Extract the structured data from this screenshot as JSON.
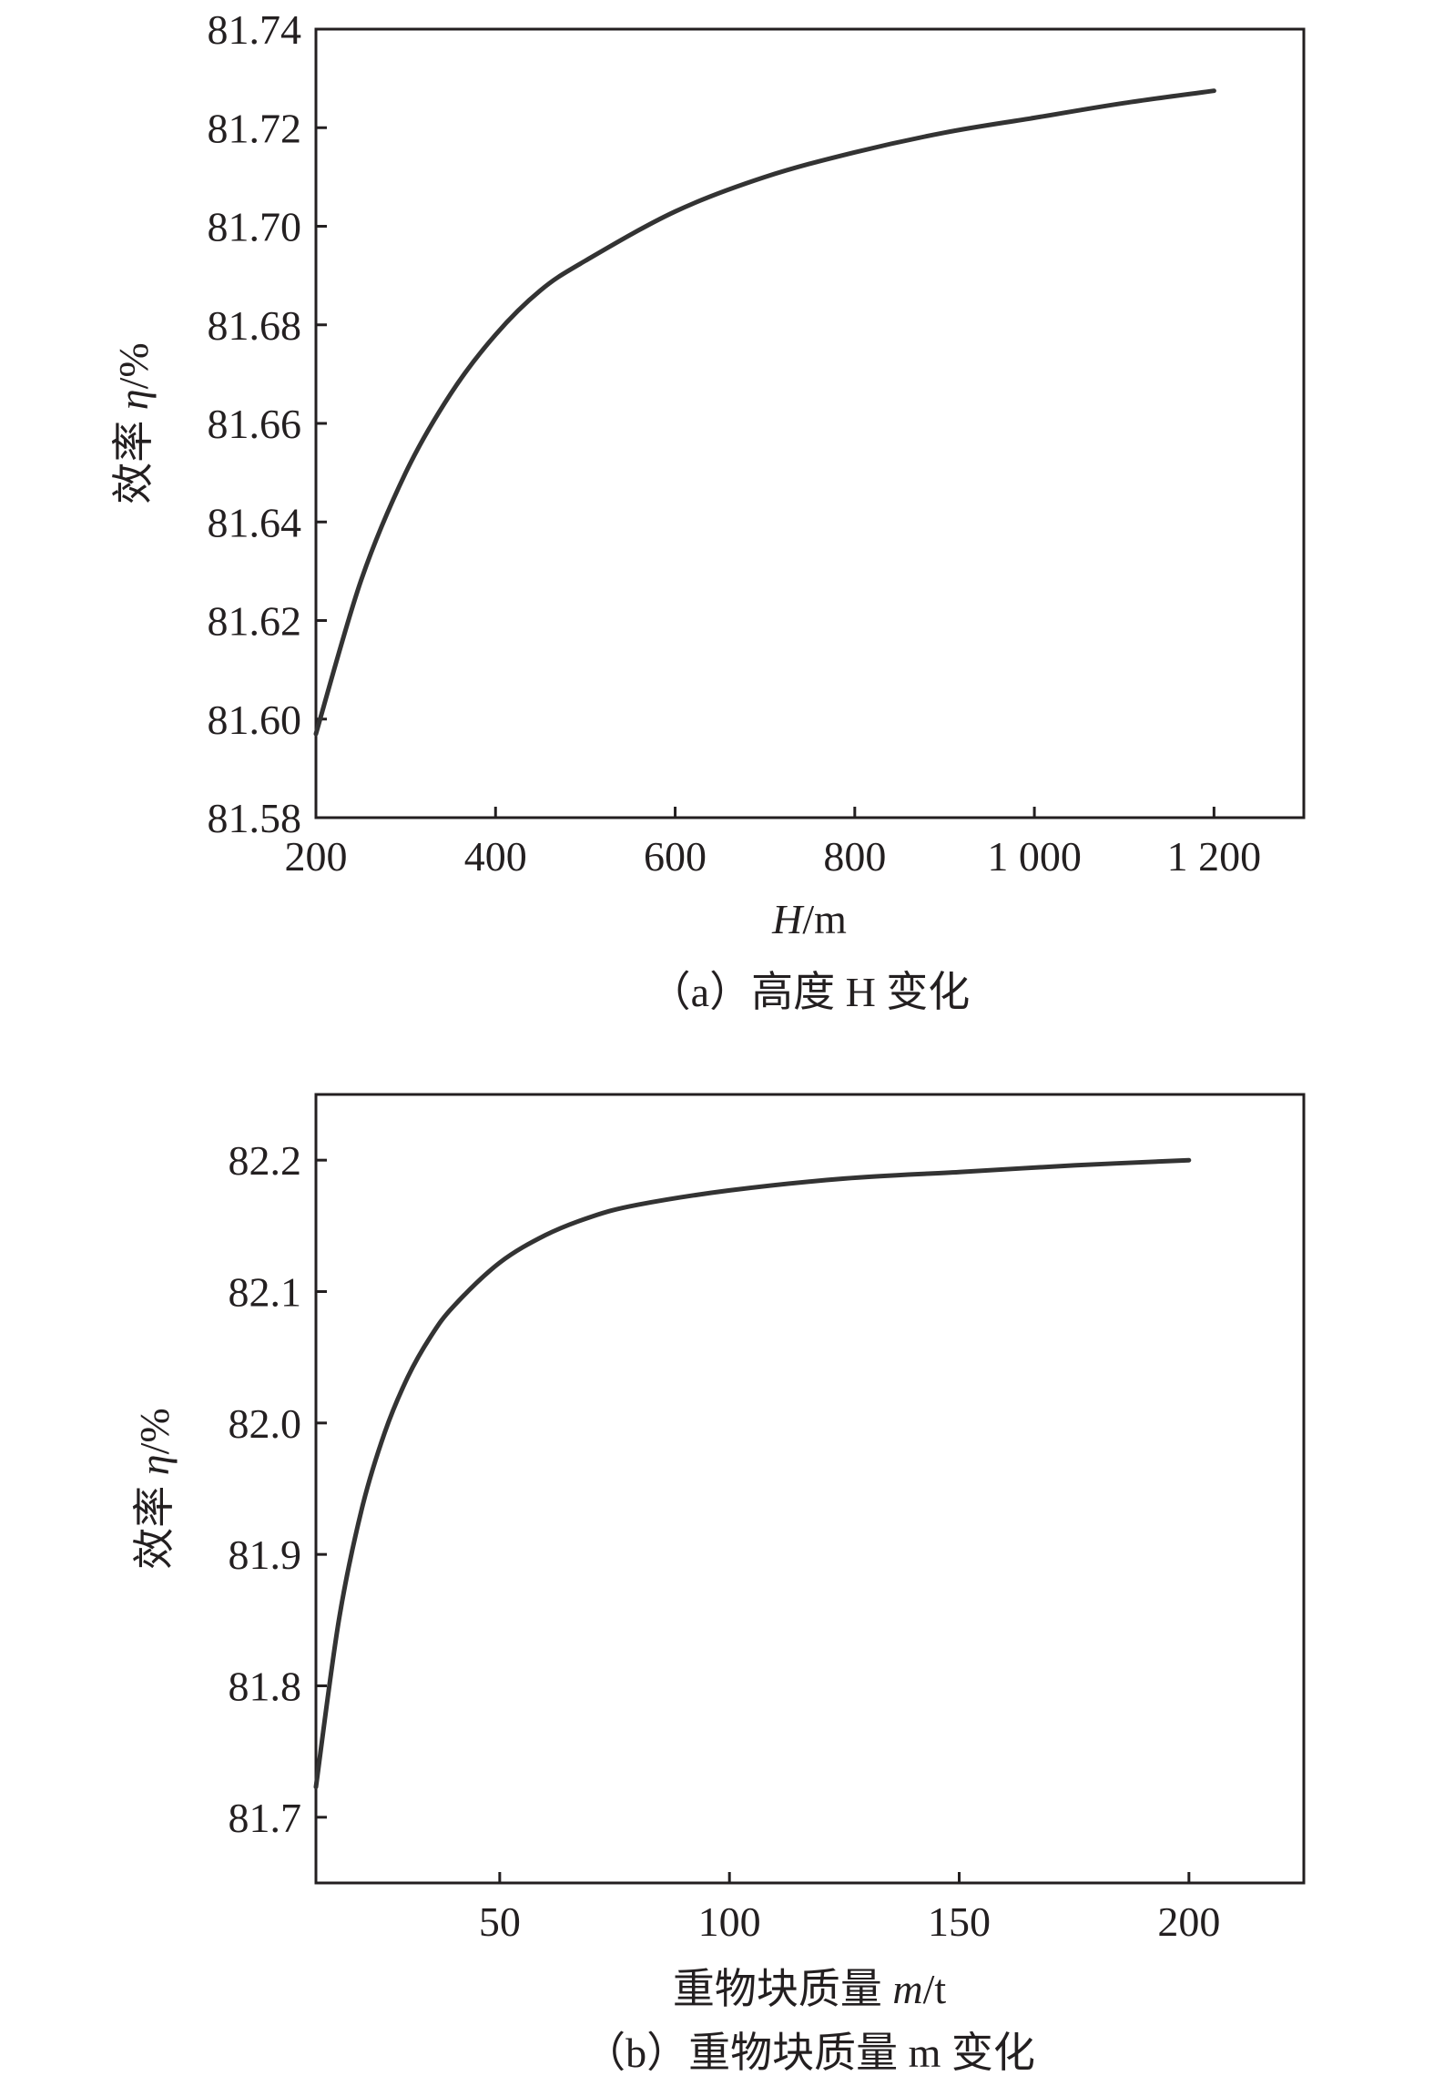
{
  "chart_data": [
    {
      "type": "line",
      "caption": "（a）高度 H 变化",
      "xlabel": {
        "var": "H",
        "unit": "/m"
      },
      "ylabel": {
        "text": "效率 ",
        "var": "η",
        "unit": "/%"
      },
      "xlim": [
        200,
        1300
      ],
      "ylim": [
        81.58,
        81.74
      ],
      "xticks": [
        200,
        400,
        600,
        800,
        1000,
        1200
      ],
      "xtick_labels": [
        "200",
        "400",
        "600",
        "800",
        "1 000",
        "1 200"
      ],
      "yticks": [
        81.58,
        81.6,
        81.62,
        81.64,
        81.66,
        81.68,
        81.7,
        81.72,
        81.74
      ],
      "ytick_labels": [
        "81.58",
        "81.60",
        "81.62",
        "81.64",
        "81.66",
        "81.68",
        "81.70",
        "81.72",
        "81.74"
      ],
      "grid": false,
      "series": [
        {
          "x": [
            200,
            250,
            300,
            350,
            400,
            450,
            500,
            600,
            700,
            800,
            900,
            1000,
            1100,
            1200
          ],
          "y": [
            81.597,
            81.628,
            81.65,
            81.666,
            81.678,
            81.687,
            81.693,
            81.703,
            81.71,
            81.715,
            81.719,
            81.722,
            81.725,
            81.7275
          ]
        }
      ]
    },
    {
      "type": "line",
      "caption": "（b）重物块质量 m 变化",
      "xlabel": {
        "text": "重物块质量 ",
        "var": "m",
        "unit": "/t"
      },
      "ylabel": {
        "text": "效率 ",
        "var": "η",
        "unit": "/%"
      },
      "xlim": [
        10,
        225
      ],
      "ylim": [
        81.65,
        82.25
      ],
      "xticks": [
        50,
        100,
        150,
        200
      ],
      "xtick_labels": [
        "50",
        "100",
        "150",
        "200"
      ],
      "yticks": [
        81.7,
        81.8,
        81.9,
        82.0,
        82.1,
        82.2
      ],
      "ytick_labels": [
        "81.7",
        "81.8",
        "81.9",
        "82.0",
        "82.1",
        "82.2"
      ],
      "grid": false,
      "series": [
        {
          "x": [
            10,
            15,
            20,
            25,
            30,
            35,
            40,
            50,
            60,
            70,
            80,
            100,
            125,
            150,
            175,
            200
          ],
          "y": [
            81.723,
            81.85,
            81.935,
            81.993,
            82.035,
            82.066,
            82.089,
            82.122,
            82.143,
            82.157,
            82.166,
            82.177,
            82.186,
            82.191,
            82.196,
            82.2
          ]
        }
      ]
    }
  ]
}
